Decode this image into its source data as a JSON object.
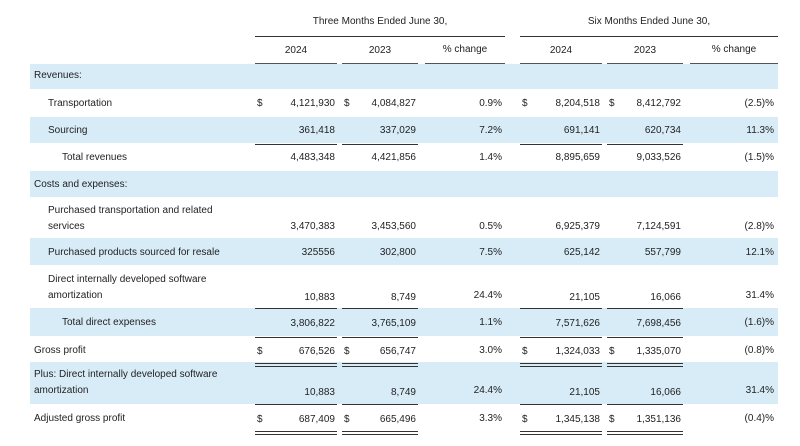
{
  "header": {
    "group_three": "Three Months Ended June 30,",
    "group_six": "Six Months Ended June 30,",
    "col_2024": "2024",
    "col_2023": "2023",
    "col_pct": "% change"
  },
  "dollar": "$",
  "rows": [
    {
      "id": "revenues",
      "label": "Revenues:",
      "section": true
    },
    {
      "id": "transportation",
      "label": "Transportation",
      "dollars": true,
      "v": [
        "4,121,930",
        "4,084,827",
        "0.9%",
        "8,204,518",
        "8,412,792",
        "(2.5)%"
      ]
    },
    {
      "id": "sourcing",
      "label": "Sourcing",
      "v": [
        "361,418",
        "337,029",
        "7.2%",
        "691,141",
        "620,734",
        "11.3%"
      ]
    },
    {
      "id": "total-revenues",
      "label": "Total revenues",
      "v": [
        "4,483,348",
        "4,421,856",
        "1.4%",
        "8,895,659",
        "9,033,526",
        "(1.5)%"
      ]
    },
    {
      "id": "costs",
      "label": "Costs and expenses:",
      "section": true
    },
    {
      "id": "purchased-transportation",
      "label_line1": "Purchased transportation and related",
      "label_line2": "services",
      "v": [
        "3,470,383",
        "3,453,560",
        "0.5%",
        "6,925,379",
        "7,124,591",
        "(2.8)%"
      ]
    },
    {
      "id": "purchased-products",
      "label": "Purchased products sourced for resale",
      "v": [
        "325556",
        "302,800",
        "7.5%",
        "625,142",
        "557,799",
        "12.1%"
      ]
    },
    {
      "id": "direct-software",
      "label_line1": "Direct internally developed software",
      "label_line2": "amortization",
      "v": [
        "10,883",
        "8,749",
        "24.4%",
        "21,105",
        "16,066",
        "31.4%"
      ]
    },
    {
      "id": "total-direct",
      "label": "Total direct expenses",
      "v": [
        "3,806,822",
        "3,765,109",
        "1.1%",
        "7,571,626",
        "7,698,456",
        "(1.6)%"
      ]
    },
    {
      "id": "gross-profit",
      "label": "Gross profit",
      "dollars": true,
      "v": [
        "676,526",
        "656,747",
        "3.0%",
        "1,324,033",
        "1,335,070",
        "(0.8)%"
      ]
    },
    {
      "id": "plus-software",
      "label_line1": "Plus: Direct internally developed software",
      "label_line2": "amortization",
      "v": [
        "10,883",
        "8,749",
        "24.4%",
        "21,105",
        "16,066",
        "31.4%"
      ]
    },
    {
      "id": "adjusted-gross-profit",
      "label": "Adjusted gross profit",
      "dollars": true,
      "v": [
        "687,409",
        "665,496",
        "3.3%",
        "1,345,138",
        "1,351,136",
        "(0.4)%"
      ]
    }
  ]
}
